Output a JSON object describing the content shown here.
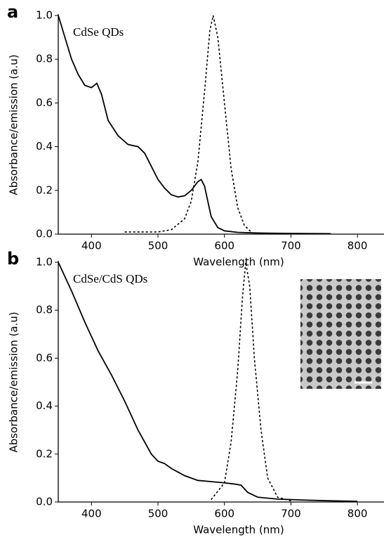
{
  "chart_data": [
    {
      "type": "line",
      "panel_label": "a",
      "annotation": "CdSe QDs",
      "x_label": "Wavelength (nm)",
      "y_label": "Absorbance/emission (a.u)",
      "xlim": [
        350,
        840
      ],
      "ylim": [
        0,
        1
      ],
      "xticks": [
        400,
        500,
        600,
        700,
        800
      ],
      "yticks": [
        {
          "value": 0,
          "label": "0.0"
        },
        0.2,
        0.4,
        0.6,
        0.8,
        {
          "value": 1,
          "label": "1.0"
        }
      ],
      "series": [
        {
          "color": "#000000",
          "style": "solid",
          "x": [
            350,
            360,
            370,
            380,
            390,
            400,
            408,
            415,
            425,
            440,
            455,
            470,
            480,
            490,
            500,
            510,
            520,
            530,
            540,
            550,
            560,
            565,
            570,
            575,
            580,
            590,
            600,
            620,
            650,
            700,
            760
          ],
          "values": [
            1.0,
            0.9,
            0.8,
            0.73,
            0.68,
            0.67,
            0.69,
            0.64,
            0.52,
            0.45,
            0.41,
            0.4,
            0.37,
            0.31,
            0.25,
            0.21,
            0.18,
            0.17,
            0.175,
            0.2,
            0.24,
            0.25,
            0.22,
            0.15,
            0.08,
            0.03,
            0.015,
            0.008,
            0.005,
            0.003,
            0.002
          ]
        },
        {
          "color": "#000000",
          "style": "dashed",
          "x": [
            450,
            500,
            520,
            540,
            550,
            560,
            570,
            578,
            583,
            590,
            600,
            610,
            620,
            630,
            640
          ],
          "values": [
            0.01,
            0.01,
            0.02,
            0.07,
            0.15,
            0.33,
            0.65,
            0.93,
            1.0,
            0.9,
            0.6,
            0.3,
            0.12,
            0.04,
            0.01
          ]
        }
      ]
    },
    {
      "type": "line",
      "panel_label": "b",
      "annotation": "CdSe/CdS QDs",
      "x_label": "Wavelength (nm)",
      "y_label": "Absorbance/emission (a.u)",
      "xlim": [
        350,
        840
      ],
      "ylim": [
        0,
        1
      ],
      "xticks": [
        400,
        500,
        600,
        700,
        800
      ],
      "yticks": [
        {
          "value": 0,
          "label": "0.0"
        },
        0.2,
        0.4,
        0.6,
        0.8,
        {
          "value": 1,
          "label": "1.0"
        }
      ],
      "series": [
        {
          "color": "#000000",
          "style": "solid",
          "x": [
            350,
            370,
            390,
            410,
            430,
            450,
            470,
            490,
            500,
            510,
            520,
            540,
            560,
            580,
            600,
            615,
            625,
            635,
            650,
            680,
            720,
            760,
            800
          ],
          "values": [
            1.0,
            0.88,
            0.75,
            0.63,
            0.53,
            0.42,
            0.3,
            0.2,
            0.17,
            0.16,
            0.14,
            0.11,
            0.09,
            0.085,
            0.08,
            0.075,
            0.07,
            0.04,
            0.02,
            0.012,
            0.008,
            0.005,
            0.003
          ]
        },
        {
          "color": "#000000",
          "style": "dashed",
          "x": [
            580,
            600,
            610,
            620,
            627,
            632,
            638,
            645,
            655,
            665,
            680,
            700
          ],
          "values": [
            0.01,
            0.08,
            0.25,
            0.55,
            0.85,
            1.0,
            0.9,
            0.6,
            0.3,
            0.1,
            0.02,
            0.005
          ]
        }
      ]
    }
  ]
}
